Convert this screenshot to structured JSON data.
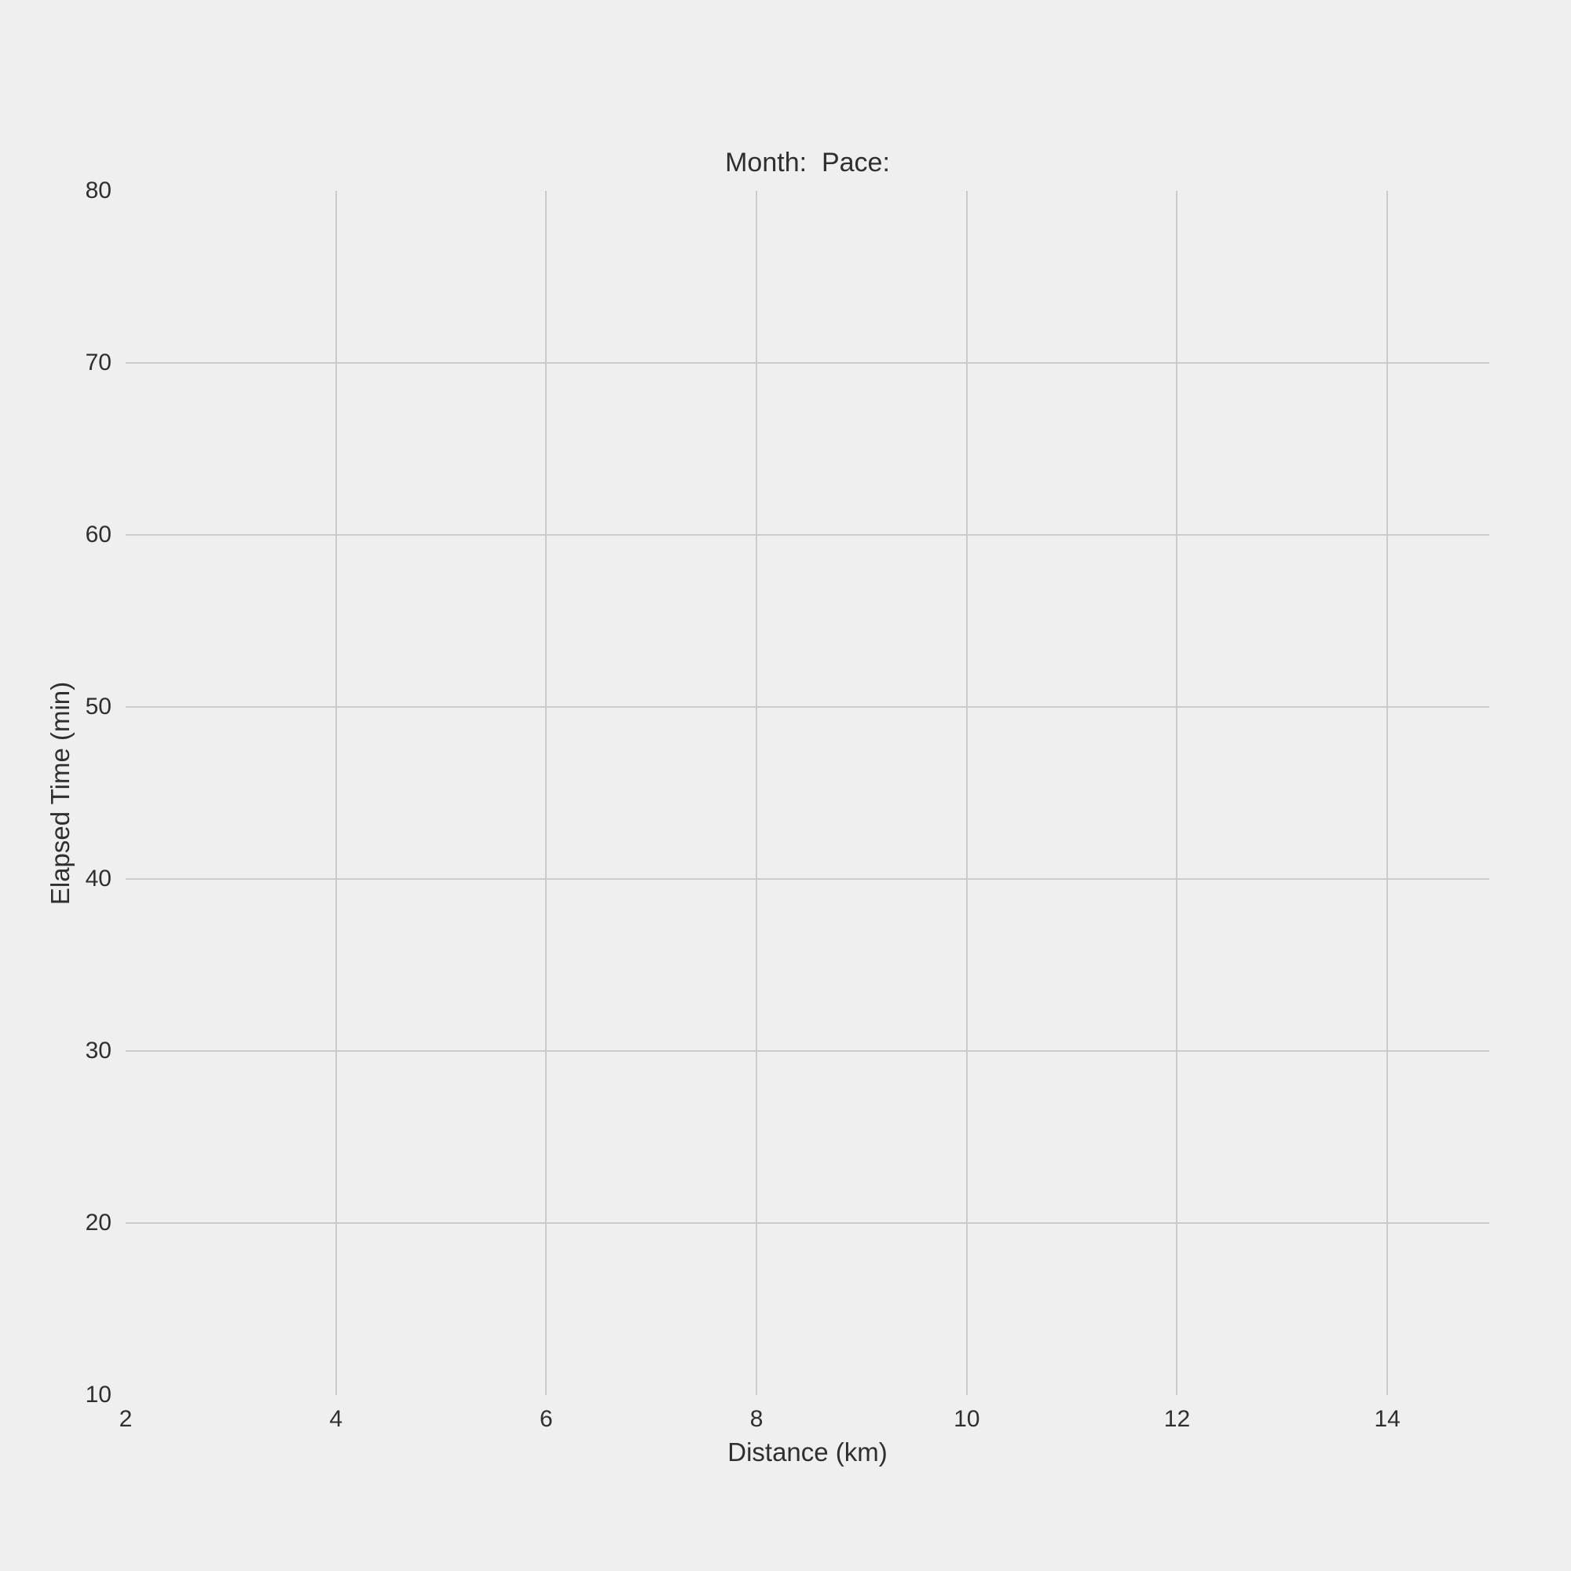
{
  "chart_data": {
    "type": "scatter",
    "title": "Month:  Pace:",
    "xlabel": "Distance (km)",
    "ylabel": "Elapsed Time (min)",
    "xlim": [
      2,
      14.97
    ],
    "ylim": [
      10,
      80
    ],
    "x_ticks": [
      2,
      4,
      6,
      8,
      10,
      12,
      14
    ],
    "y_ticks": [
      10,
      20,
      30,
      40,
      50,
      60,
      70,
      80
    ],
    "series": [],
    "grid": true,
    "legend": false,
    "colors": {
      "background": "#efefef",
      "grid": "#cbcbcb",
      "text": "#2f2f2f"
    }
  }
}
